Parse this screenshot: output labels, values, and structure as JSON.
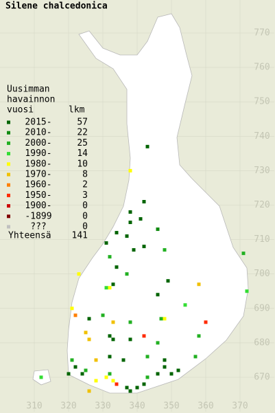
{
  "map": {
    "title": "Silene chalcedonica",
    "legend": {
      "heading": [
        "Uusimman",
        "havainnon",
        "vuosi"
      ],
      "count_heading": "lkm",
      "rows": [
        {
          "label": "2015-",
          "count": 57,
          "color": "#006400"
        },
        {
          "label": "2010-",
          "count": 22,
          "color": "#108a10"
        },
        {
          "label": "2000-",
          "count": 25,
          "color": "#22b022"
        },
        {
          "label": "1990-",
          "count": 14,
          "color": "#33dd33"
        },
        {
          "label": "1980-",
          "count": 10,
          "color": "#ffff00"
        },
        {
          "label": "1970-",
          "count": 8,
          "color": "#f0c000"
        },
        {
          "label": "1960-",
          "count": 2,
          "color": "#ff7f00"
        },
        {
          "label": "1950-",
          "count": 3,
          "color": "#ff2a00"
        },
        {
          "label": "1900-",
          "count": 0,
          "color": "#cc0000"
        },
        {
          "label": "-1899",
          "count": 0,
          "color": "#800000"
        },
        {
          "label": "???",
          "count": 0,
          "color": "#c0c0c0"
        }
      ],
      "total_label": "Yhteensä",
      "total": 141
    },
    "xlim": [
      300,
      380
    ],
    "ylim": [
      660,
      780
    ],
    "xticks": [
      310,
      320,
      330,
      340,
      350,
      360,
      370
    ],
    "yticks": [
      670,
      680,
      690,
      700,
      710,
      720,
      730,
      740,
      750,
      760,
      770
    ],
    "records": [
      {
        "x": 343,
        "y": 737,
        "period": 0
      },
      {
        "x": 338,
        "y": 730,
        "period": 4
      },
      {
        "x": 342,
        "y": 721,
        "period": 0
      },
      {
        "x": 338,
        "y": 718,
        "period": 0
      },
      {
        "x": 338,
        "y": 715,
        "period": 0
      },
      {
        "x": 341,
        "y": 716,
        "period": 0
      },
      {
        "x": 334,
        "y": 712,
        "period": 0
      },
      {
        "x": 331,
        "y": 709,
        "period": 0
      },
      {
        "x": 337,
        "y": 711,
        "period": 0
      },
      {
        "x": 346,
        "y": 713,
        "period": 1
      },
      {
        "x": 339,
        "y": 707,
        "period": 0
      },
      {
        "x": 348,
        "y": 707,
        "period": 2
      },
      {
        "x": 342,
        "y": 708,
        "period": 0
      },
      {
        "x": 332,
        "y": 705,
        "period": 2
      },
      {
        "x": 334,
        "y": 702,
        "period": 0
      },
      {
        "x": 371,
        "y": 706,
        "period": 2
      },
      {
        "x": 323,
        "y": 700,
        "period": 4
      },
      {
        "x": 333,
        "y": 697,
        "period": 0
      },
      {
        "x": 331,
        "y": 696,
        "period": 3
      },
      {
        "x": 332,
        "y": 696,
        "period": 4
      },
      {
        "x": 337,
        "y": 700,
        "period": 2
      },
      {
        "x": 349,
        "y": 698,
        "period": 0
      },
      {
        "x": 346,
        "y": 694,
        "period": 0
      },
      {
        "x": 358,
        "y": 697,
        "period": 5
      },
      {
        "x": 372,
        "y": 695,
        "period": 3
      },
      {
        "x": 354,
        "y": 691,
        "period": 3
      },
      {
        "x": 347,
        "y": 687,
        "period": 2
      },
      {
        "x": 348,
        "y": 687,
        "period": 4
      },
      {
        "x": 360,
        "y": 686,
        "period": 7
      },
      {
        "x": 321,
        "y": 690,
        "period": 4
      },
      {
        "x": 322,
        "y": 688,
        "period": 6
      },
      {
        "x": 326,
        "y": 687,
        "period": 0
      },
      {
        "x": 330,
        "y": 688,
        "period": 2
      },
      {
        "x": 333,
        "y": 686,
        "period": 5
      },
      {
        "x": 338,
        "y": 686,
        "period": 2
      },
      {
        "x": 325,
        "y": 683,
        "period": 5
      },
      {
        "x": 326,
        "y": 681,
        "period": 5
      },
      {
        "x": 332,
        "y": 682,
        "period": 0
      },
      {
        "x": 333,
        "y": 681,
        "period": 0
      },
      {
        "x": 338,
        "y": 681,
        "period": 0
      },
      {
        "x": 342,
        "y": 682,
        "period": 7
      },
      {
        "x": 346,
        "y": 680,
        "period": 2
      },
      {
        "x": 358,
        "y": 682,
        "period": 2
      },
      {
        "x": 328,
        "y": 675,
        "period": 5
      },
      {
        "x": 321,
        "y": 675,
        "period": 2
      },
      {
        "x": 322,
        "y": 673,
        "period": 0
      },
      {
        "x": 324,
        "y": 671,
        "period": 0
      },
      {
        "x": 325,
        "y": 672,
        "period": 2
      },
      {
        "x": 320,
        "y": 671,
        "period": 0
      },
      {
        "x": 312,
        "y": 670,
        "period": 3
      },
      {
        "x": 332,
        "y": 676,
        "period": 0
      },
      {
        "x": 336,
        "y": 675,
        "period": 0
      },
      {
        "x": 343,
        "y": 676,
        "period": 2
      },
      {
        "x": 348,
        "y": 675,
        "period": 0
      },
      {
        "x": 348,
        "y": 673,
        "period": 0
      },
      {
        "x": 352,
        "y": 672,
        "period": 0
      },
      {
        "x": 357,
        "y": 676,
        "period": 2
      },
      {
        "x": 332,
        "y": 671,
        "period": 2
      },
      {
        "x": 333,
        "y": 669,
        "period": 4
      },
      {
        "x": 334,
        "y": 668,
        "period": 7
      },
      {
        "x": 337,
        "y": 667,
        "period": 0
      },
      {
        "x": 338,
        "y": 666,
        "period": 0
      },
      {
        "x": 340,
        "y": 667,
        "period": 0
      },
      {
        "x": 342,
        "y": 668,
        "period": 0
      },
      {
        "x": 343,
        "y": 670,
        "period": 2
      },
      {
        "x": 346,
        "y": 671,
        "period": 0
      },
      {
        "x": 328,
        "y": 669,
        "period": 4
      },
      {
        "x": 331,
        "y": 670,
        "period": 4
      },
      {
        "x": 326,
        "y": 666,
        "period": 5
      },
      {
        "x": 350,
        "y": 671,
        "period": 0
      }
    ]
  }
}
